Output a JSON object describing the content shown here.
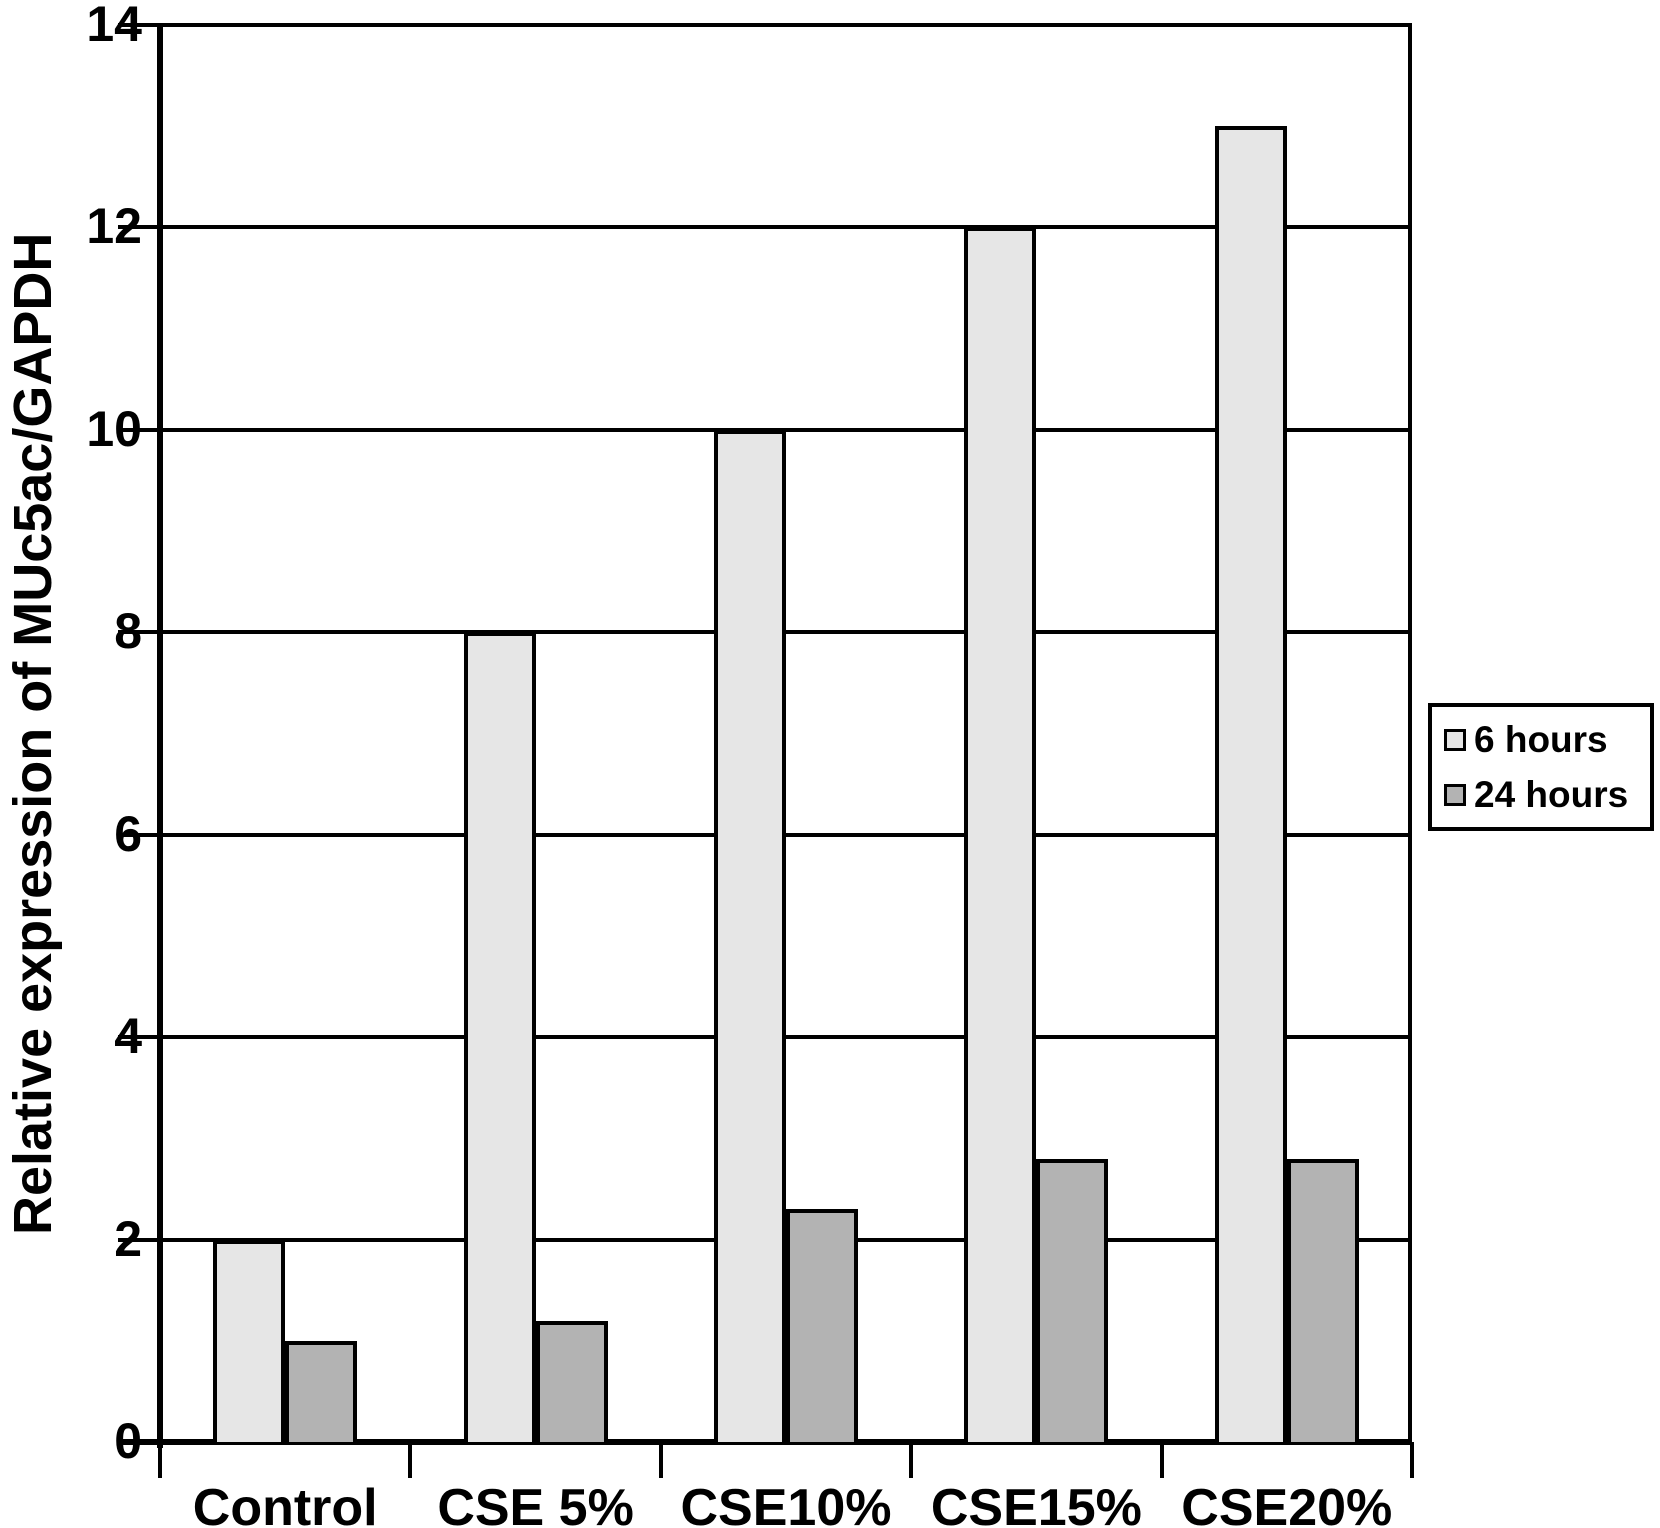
{
  "chart_data": {
    "type": "bar",
    "categories": [
      "Control",
      "CSE 5%",
      "CSE10%",
      "CSE15%",
      "CSE20%"
    ],
    "series": [
      {
        "name": "6 hours",
        "color": "#e6e6e6",
        "values": [
          2,
          8,
          10,
          12,
          13
        ]
      },
      {
        "name": "24 hours",
        "color": "#b3b3b3",
        "values": [
          1,
          1.2,
          2.3,
          2.8,
          2.8
        ]
      }
    ],
    "title": "",
    "xlabel": "",
    "ylabel": "Relative expression of MUc5ac/GAPDH",
    "ylim": [
      0,
      14
    ],
    "yticks": [
      0,
      2,
      4,
      6,
      8,
      10,
      12,
      14
    ],
    "grid": "horizontal",
    "legend_position": "right",
    "axis_color": "#000000",
    "background_color": "#ffffff"
  }
}
